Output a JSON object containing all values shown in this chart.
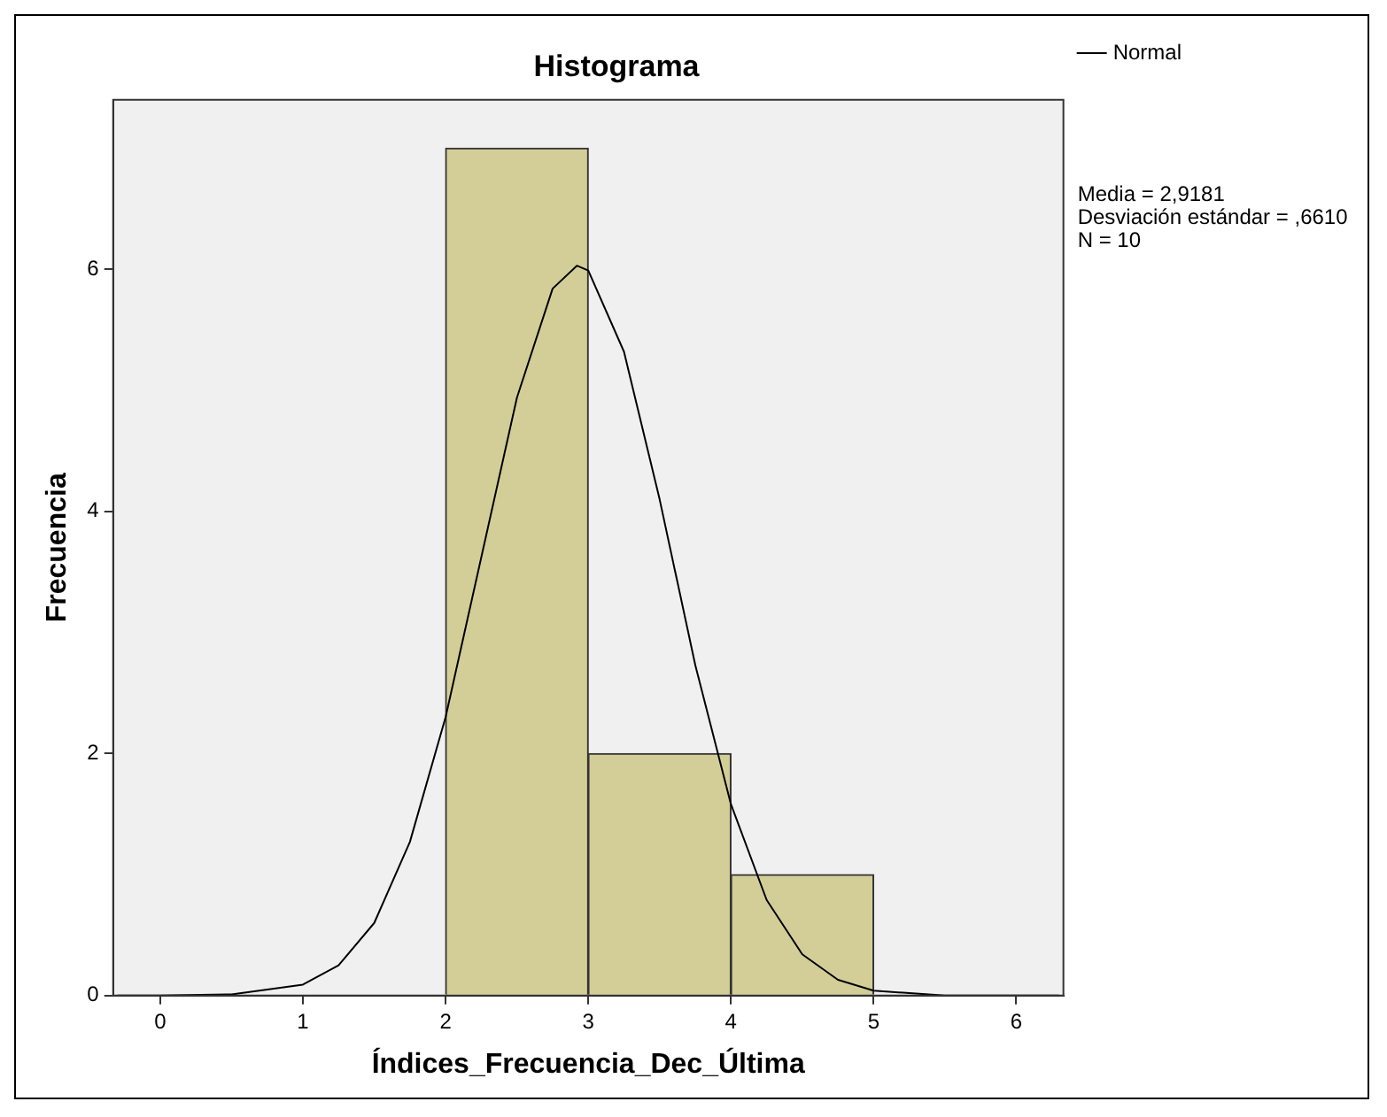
{
  "chart_data": {
    "type": "histogram",
    "title": "Histograma",
    "xlabel": "Índices_Frecuencia_Dec_Última",
    "ylabel": "Frecuencia",
    "bins": [
      2,
      3,
      4,
      5
    ],
    "values": [
      7,
      2,
      1
    ],
    "color": "#d3ce97",
    "series": [
      {
        "name": "Normal",
        "type": "line",
        "color": "#000000",
        "x": [
          -0.3,
          0,
          0.5,
          1,
          1.25,
          1.5,
          1.75,
          2,
          2.25,
          2.5,
          2.75,
          2.92,
          3,
          3.25,
          3.5,
          3.75,
          4,
          4.25,
          4.5,
          4.75,
          5,
          5.5,
          6,
          6.3
        ],
        "values": [
          0,
          0,
          0.01,
          0.09,
          0.25,
          0.6,
          1.27,
          2.3,
          3.62,
          4.94,
          5.84,
          6.03,
          5.99,
          5.32,
          4.1,
          2.73,
          1.58,
          0.79,
          0.34,
          0.13,
          0.04,
          0,
          0,
          0
        ]
      }
    ],
    "xlim": [
      -0.33,
      6.33
    ],
    "xticks": [
      0,
      1,
      2,
      3,
      4,
      5,
      6
    ],
    "ylim": [
      0,
      7.4
    ],
    "yticks": [
      0,
      2,
      4,
      6
    ],
    "grid": false,
    "legend": "top right",
    "marker": "none",
    "line_style": "solid",
    "annotations": [
      "Media = 2,9181",
      "Desviación estándar = ,6610",
      "N = 10"
    ]
  }
}
